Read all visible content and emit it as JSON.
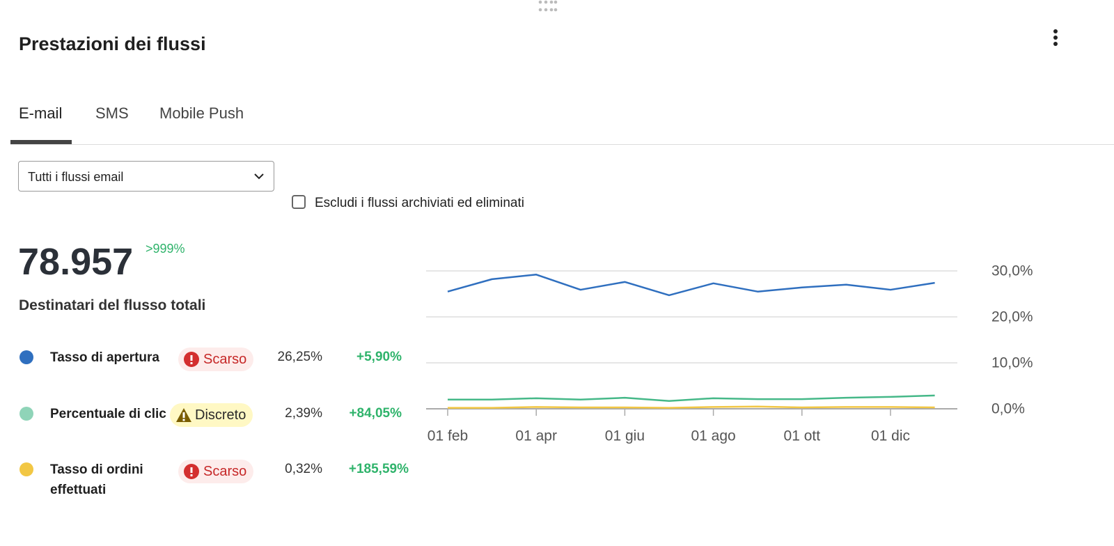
{
  "header": {
    "title": "Prestazioni dei flussi"
  },
  "tabs": [
    "E-mail",
    "SMS",
    "Mobile Push"
  ],
  "filters": {
    "dropdown": "Tutti i flussi email",
    "checkbox": "Escludi i flussi archiviati ed eliminati"
  },
  "summary": {
    "value": "78.957",
    "change": ">999%",
    "label": "Destinatari del flusso totali"
  },
  "metrics": [
    {
      "status": "Scarso",
      "value": "26,25%",
      "change": "+5,90%"
    },
    {
      "status": "Discreto",
      "value": "2,39%",
      "change": "+84,05%"
    },
    {
      "status": "Scarso",
      "value": "0,32%",
      "change": "+185,59%"
    }
  ],
  "chart_data": {
    "type": "line",
    "categories": [
      "01 feb",
      null,
      "01 apr",
      null,
      "01 giu",
      null,
      "01 ago",
      null,
      "01 ott",
      null,
      "01 dic",
      null
    ],
    "series": [
      {
        "name": "Tasso di apertura",
        "color": "#2f6fbf",
        "values": [
          25.5,
          28.2,
          29.2,
          25.9,
          27.6,
          24.7,
          27.3,
          25.5,
          26.4,
          27.0,
          25.9,
          27.4
        ]
      },
      {
        "name": "Percentuale di clic",
        "color": "#45b888",
        "values": [
          2.0,
          2.0,
          2.3,
          2.0,
          2.4,
          1.7,
          2.3,
          2.1,
          2.1,
          2.4,
          2.6,
          2.9
        ]
      },
      {
        "name": "Tasso di ordini effettuati",
        "color": "#f2c744",
        "values": [
          0.2,
          0.2,
          0.4,
          0.3,
          0.3,
          0.2,
          0.4,
          0.5,
          0.3,
          0.4,
          0.4,
          0.3
        ]
      }
    ],
    "ylim": [
      0,
      30
    ],
    "yticks": [
      {
        "value": 0,
        "label": "0,0%"
      },
      {
        "value": 10,
        "label": "10,0%"
      },
      {
        "value": 20,
        "label": "20,0%"
      },
      {
        "value": 30,
        "label": "30,0%"
      }
    ],
    "grid": true
  }
}
